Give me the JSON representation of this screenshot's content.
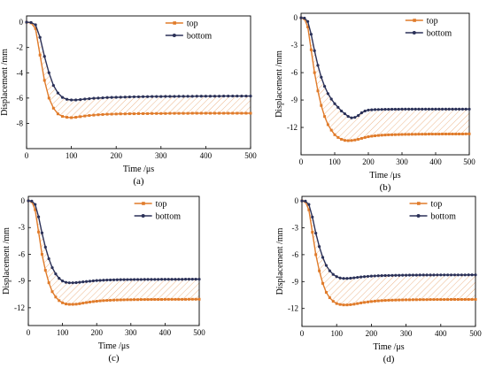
{
  "colors": {
    "top": "#e07b2a",
    "bottom": "#2b3158",
    "hatch": "#e9a46e"
  },
  "chart_data": [
    {
      "type": "line",
      "panel_label": "(a)",
      "xlabel": "Time /μs",
      "ylabel": "Displacement /mm",
      "xlim": [
        0,
        500
      ],
      "ylim": [
        -10,
        0.5
      ],
      "xticks": [
        0,
        100,
        200,
        300,
        400,
        500
      ],
      "yticks": [
        0,
        -2,
        -4,
        -6,
        -8
      ],
      "legend": "top-right",
      "series": [
        {
          "name": "top",
          "marker": "square",
          "x": [
            0,
            10,
            20,
            30,
            40,
            50,
            60,
            70,
            80,
            90,
            100,
            110,
            120,
            130,
            140,
            150,
            160,
            170,
            180,
            190,
            200,
            210,
            220,
            230,
            240,
            250,
            260,
            270,
            280,
            290,
            300,
            310,
            320,
            330,
            340,
            350,
            360,
            370,
            380,
            390,
            400,
            410,
            420,
            430,
            440,
            450,
            460,
            470,
            480,
            490,
            500
          ],
          "y": [
            0,
            -0.05,
            -0.5,
            -2.6,
            -4.6,
            -6.0,
            -6.8,
            -7.25,
            -7.45,
            -7.52,
            -7.55,
            -7.52,
            -7.47,
            -7.42,
            -7.38,
            -7.35,
            -7.32,
            -7.3,
            -7.28,
            -7.27,
            -7.26,
            -7.25,
            -7.25,
            -7.24,
            -7.24,
            -7.23,
            -7.23,
            -7.23,
            -7.22,
            -7.22,
            -7.22,
            -7.22,
            -7.21,
            -7.21,
            -7.21,
            -7.21,
            -7.21,
            -7.2,
            -7.2,
            -7.2,
            -7.2,
            -7.2,
            -7.2,
            -7.2,
            -7.2,
            -7.2,
            -7.2,
            -7.2,
            -7.2,
            -7.2,
            -7.2
          ]
        },
        {
          "name": "bottom",
          "marker": "circle",
          "x": [
            0,
            10,
            20,
            30,
            40,
            50,
            60,
            70,
            80,
            90,
            100,
            110,
            120,
            130,
            140,
            150,
            160,
            170,
            180,
            190,
            200,
            210,
            220,
            230,
            240,
            250,
            260,
            270,
            280,
            290,
            300,
            310,
            320,
            330,
            340,
            350,
            360,
            370,
            380,
            390,
            400,
            410,
            420,
            430,
            440,
            450,
            460,
            470,
            480,
            490,
            500
          ],
          "y": [
            0,
            -0.02,
            -0.2,
            -1.2,
            -2.7,
            -4.0,
            -5.0,
            -5.6,
            -5.95,
            -6.1,
            -6.15,
            -6.15,
            -6.12,
            -6.08,
            -6.05,
            -6.02,
            -6.0,
            -5.98,
            -5.96,
            -5.95,
            -5.94,
            -5.93,
            -5.92,
            -5.91,
            -5.9,
            -5.9,
            -5.89,
            -5.89,
            -5.88,
            -5.88,
            -5.88,
            -5.87,
            -5.87,
            -5.87,
            -5.86,
            -5.86,
            -5.86,
            -5.86,
            -5.85,
            -5.85,
            -5.85,
            -5.85,
            -5.85,
            -5.85,
            -5.84,
            -5.84,
            -5.84,
            -5.84,
            -5.84,
            -5.84,
            -5.84
          ]
        }
      ]
    },
    {
      "type": "line",
      "panel_label": "(b)",
      "xlabel": "Time /μs",
      "ylabel": "Displacement /mm",
      "xlim": [
        0,
        500
      ],
      "ylim": [
        -15,
        0.5
      ],
      "xticks": [
        0,
        100,
        200,
        300,
        400,
        500
      ],
      "yticks": [
        0,
        -3,
        -6,
        -9,
        -12
      ],
      "legend": "top-right",
      "series": [
        {
          "name": "top",
          "marker": "square",
          "x": [
            0,
            10,
            20,
            30,
            40,
            50,
            60,
            70,
            80,
            90,
            100,
            110,
            120,
            130,
            140,
            150,
            160,
            170,
            180,
            190,
            200,
            210,
            220,
            230,
            240,
            250,
            260,
            270,
            280,
            290,
            300,
            310,
            320,
            330,
            340,
            350,
            360,
            370,
            380,
            390,
            400,
            410,
            420,
            430,
            440,
            450,
            460,
            470,
            480,
            490,
            500
          ],
          "y": [
            0,
            -0.1,
            -1.0,
            -3.5,
            -6.0,
            -8.0,
            -9.6,
            -10.8,
            -11.7,
            -12.3,
            -12.8,
            -13.1,
            -13.3,
            -13.42,
            -13.45,
            -13.43,
            -13.38,
            -13.3,
            -13.2,
            -13.1,
            -13.02,
            -12.96,
            -12.92,
            -12.88,
            -12.85,
            -12.83,
            -12.81,
            -12.8,
            -12.79,
            -12.78,
            -12.77,
            -12.76,
            -12.76,
            -12.75,
            -12.75,
            -12.74,
            -12.74,
            -12.74,
            -12.73,
            -12.73,
            -12.73,
            -12.73,
            -12.72,
            -12.72,
            -12.72,
            -12.72,
            -12.72,
            -12.72,
            -12.72,
            -12.71,
            -12.71
          ]
        },
        {
          "name": "bottom",
          "marker": "circle",
          "x": [
            0,
            10,
            20,
            30,
            40,
            50,
            60,
            70,
            80,
            90,
            100,
            110,
            120,
            130,
            140,
            150,
            160,
            170,
            180,
            190,
            200,
            210,
            220,
            230,
            240,
            250,
            260,
            270,
            280,
            290,
            300,
            310,
            320,
            330,
            340,
            350,
            360,
            370,
            380,
            390,
            400,
            410,
            420,
            430,
            440,
            450,
            460,
            470,
            480,
            490,
            500
          ],
          "y": [
            0,
            -0.03,
            -0.4,
            -1.8,
            -3.6,
            -5.2,
            -6.5,
            -7.5,
            -8.3,
            -8.9,
            -9.4,
            -9.8,
            -10.2,
            -10.5,
            -10.8,
            -10.95,
            -10.9,
            -10.7,
            -10.4,
            -10.2,
            -10.1,
            -10.07,
            -10.05,
            -10.04,
            -10.03,
            -10.02,
            -10.02,
            -10.01,
            -10.01,
            -10.01,
            -10.0,
            -10.0,
            -10.0,
            -10.0,
            -10.0,
            -10.0,
            -10.0,
            -10.0,
            -10.0,
            -10.0,
            -10.0,
            -10.0,
            -10.0,
            -10.0,
            -10.0,
            -10.0,
            -10.0,
            -10.0,
            -10.0,
            -10.0,
            -10.0
          ]
        }
      ]
    },
    {
      "type": "line",
      "panel_label": "(c)",
      "xlabel": "Time /μs",
      "ylabel": "Displacement /mm",
      "xlim": [
        0,
        500
      ],
      "ylim": [
        -14,
        0.5
      ],
      "xticks": [
        0,
        100,
        200,
        300,
        400,
        500
      ],
      "yticks": [
        0,
        -3,
        -6,
        -9,
        -12
      ],
      "legend": "top-right",
      "series": [
        {
          "name": "top",
          "marker": "square",
          "x": [
            0,
            10,
            20,
            30,
            40,
            50,
            60,
            70,
            80,
            90,
            100,
            110,
            120,
            130,
            140,
            150,
            160,
            170,
            180,
            190,
            200,
            210,
            220,
            230,
            240,
            250,
            260,
            270,
            280,
            290,
            300,
            310,
            320,
            330,
            340,
            350,
            360,
            370,
            380,
            390,
            400,
            410,
            420,
            430,
            440,
            450,
            460,
            470,
            480,
            490,
            500
          ],
          "y": [
            0,
            -0.1,
            -1.0,
            -3.5,
            -6.0,
            -7.8,
            -9.2,
            -10.2,
            -10.8,
            -11.2,
            -11.45,
            -11.58,
            -11.62,
            -11.62,
            -11.6,
            -11.55,
            -11.48,
            -11.42,
            -11.36,
            -11.31,
            -11.27,
            -11.23,
            -11.2,
            -11.18,
            -11.16,
            -11.14,
            -11.13,
            -11.12,
            -11.11,
            -11.1,
            -11.1,
            -11.09,
            -11.09,
            -11.08,
            -11.08,
            -11.08,
            -11.07,
            -11.07,
            -11.07,
            -11.07,
            -11.06,
            -11.06,
            -11.06,
            -11.06,
            -11.06,
            -11.06,
            -11.06,
            -11.05,
            -11.05,
            -11.05,
            -11.05
          ]
        },
        {
          "name": "bottom",
          "marker": "circle",
          "x": [
            0,
            10,
            20,
            30,
            40,
            50,
            60,
            70,
            80,
            90,
            100,
            110,
            120,
            130,
            140,
            150,
            160,
            170,
            180,
            190,
            200,
            210,
            220,
            230,
            240,
            250,
            260,
            270,
            280,
            290,
            300,
            310,
            320,
            330,
            340,
            350,
            360,
            370,
            380,
            390,
            400,
            410,
            420,
            430,
            440,
            450,
            460,
            470,
            480,
            490,
            500
          ],
          "y": [
            0,
            -0.03,
            -0.4,
            -1.8,
            -3.6,
            -5.2,
            -6.5,
            -7.5,
            -8.2,
            -8.7,
            -9.0,
            -9.15,
            -9.2,
            -9.2,
            -9.18,
            -9.14,
            -9.1,
            -9.06,
            -9.02,
            -8.98,
            -8.95,
            -8.93,
            -8.91,
            -8.89,
            -8.88,
            -8.87,
            -8.86,
            -8.85,
            -8.85,
            -8.84,
            -8.84,
            -8.83,
            -8.83,
            -8.83,
            -8.82,
            -8.82,
            -8.82,
            -8.82,
            -8.82,
            -8.81,
            -8.81,
            -8.81,
            -8.81,
            -8.81,
            -8.81,
            -8.81,
            -8.8,
            -8.8,
            -8.8,
            -8.8,
            -8.8
          ]
        }
      ]
    },
    {
      "type": "line",
      "panel_label": "(d)",
      "xlabel": "Time /μs",
      "ylabel": "Displacement /mm",
      "xlim": [
        0,
        500
      ],
      "ylim": [
        -14,
        0.5
      ],
      "xticks": [
        0,
        100,
        200,
        300,
        400,
        500
      ],
      "yticks": [
        0,
        -3,
        -6,
        -9,
        -12
      ],
      "legend": "top-right",
      "series": [
        {
          "name": "top",
          "marker": "square",
          "x": [
            0,
            10,
            20,
            30,
            40,
            50,
            60,
            70,
            80,
            90,
            100,
            110,
            120,
            130,
            140,
            150,
            160,
            170,
            180,
            190,
            200,
            210,
            220,
            230,
            240,
            250,
            260,
            270,
            280,
            290,
            300,
            310,
            320,
            330,
            340,
            350,
            360,
            370,
            380,
            390,
            400,
            410,
            420,
            430,
            440,
            450,
            460,
            470,
            480,
            490,
            500
          ],
          "y": [
            0,
            -0.1,
            -1.0,
            -3.5,
            -6.0,
            -7.8,
            -9.2,
            -10.2,
            -10.8,
            -11.2,
            -11.45,
            -11.55,
            -11.6,
            -11.6,
            -11.57,
            -11.52,
            -11.45,
            -11.38,
            -11.32,
            -11.27,
            -11.22,
            -11.18,
            -11.15,
            -11.12,
            -11.1,
            -11.08,
            -11.07,
            -11.06,
            -11.05,
            -11.04,
            -11.03,
            -11.03,
            -11.02,
            -11.02,
            -11.01,
            -11.01,
            -11.01,
            -11.0,
            -11.0,
            -11.0,
            -11.0,
            -11.0,
            -11.0,
            -10.99,
            -10.99,
            -10.99,
            -10.99,
            -10.99,
            -10.99,
            -10.99,
            -10.99
          ]
        },
        {
          "name": "bottom",
          "marker": "circle",
          "x": [
            0,
            10,
            20,
            30,
            40,
            50,
            60,
            70,
            80,
            90,
            100,
            110,
            120,
            130,
            140,
            150,
            160,
            170,
            180,
            190,
            200,
            210,
            220,
            230,
            240,
            250,
            260,
            270,
            280,
            290,
            300,
            310,
            320,
            330,
            340,
            350,
            360,
            370,
            380,
            390,
            400,
            410,
            420,
            430,
            440,
            450,
            460,
            470,
            480,
            490,
            500
          ],
          "y": [
            0,
            -0.03,
            -0.4,
            -1.8,
            -3.6,
            -5.1,
            -6.3,
            -7.2,
            -7.8,
            -8.2,
            -8.45,
            -8.6,
            -8.65,
            -8.65,
            -8.62,
            -8.58,
            -8.53,
            -8.49,
            -8.45,
            -8.42,
            -8.39,
            -8.37,
            -8.35,
            -8.34,
            -8.33,
            -8.32,
            -8.31,
            -8.3,
            -8.3,
            -8.29,
            -8.29,
            -8.28,
            -8.28,
            -8.28,
            -8.27,
            -8.27,
            -8.27,
            -8.27,
            -8.27,
            -8.26,
            -8.26,
            -8.26,
            -8.26,
            -8.26,
            -8.26,
            -8.26,
            -8.26,
            -8.26,
            -8.25,
            -8.25,
            -8.25
          ]
        }
      ]
    }
  ]
}
